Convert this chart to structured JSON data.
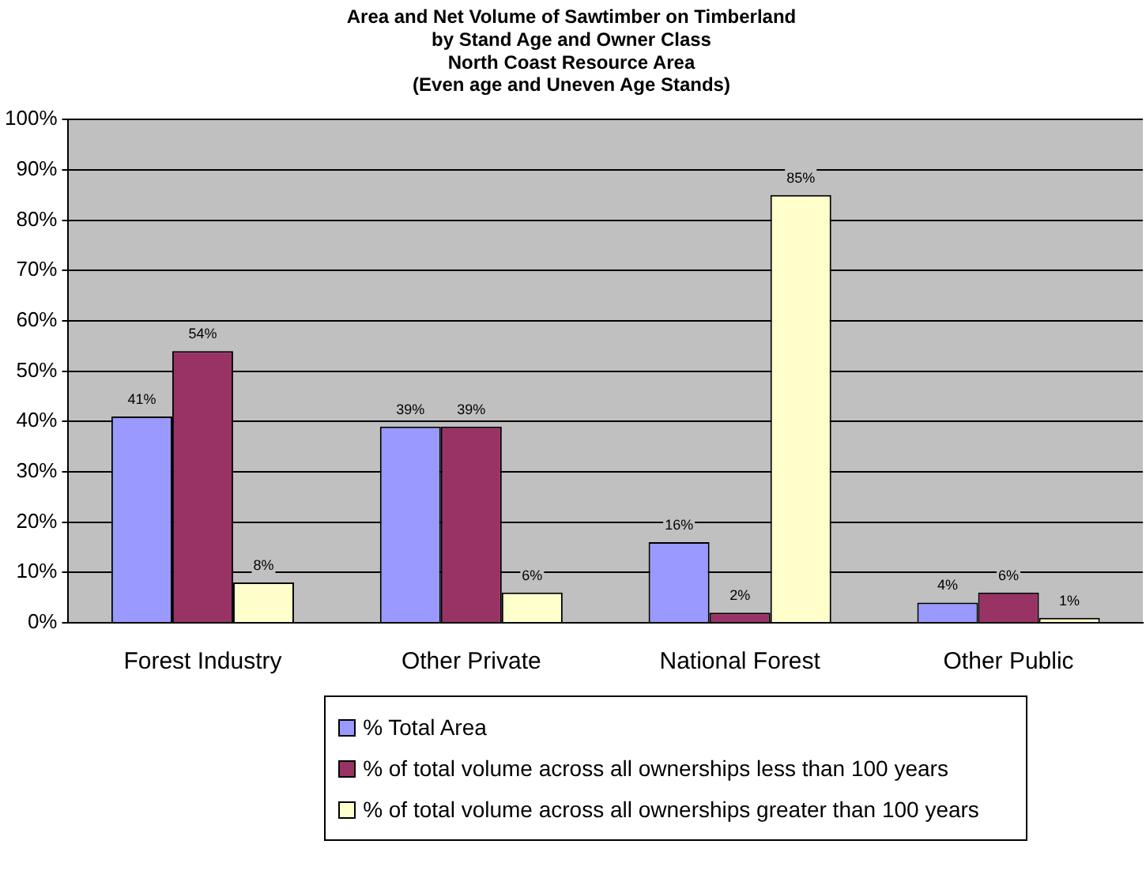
{
  "chart_data": {
    "type": "bar",
    "title": "Area and Net Volume of Sawtimber on Timberland\nby Stand Age and Owner Class\nNorth Coast Resource Area\n(Even age and Uneven Age Stands)",
    "categories": [
      "Forest Industry",
      "Other Private",
      "National Forest",
      "Other Public"
    ],
    "series": [
      {
        "name": "% Total Area",
        "color": "#9999ff",
        "values": [
          41,
          39,
          16,
          4
        ],
        "value_labels": [
          "41%",
          "39%",
          "16%",
          "4%"
        ]
      },
      {
        "name": "% of total volume across all ownerships less than 100 years",
        "color": "#993366",
        "values": [
          54,
          39,
          2,
          6
        ],
        "value_labels": [
          "54%",
          "39%",
          "2%",
          "6%"
        ]
      },
      {
        "name": "% of total volume across all ownerships greater than 100 years",
        "color": "#ffffcc",
        "values": [
          8,
          6,
          85,
          1
        ],
        "value_labels": [
          "8%",
          "6%",
          "85%",
          "1%"
        ]
      }
    ],
    "ylim": [
      0,
      100
    ],
    "yticks": [
      {
        "value": 0,
        "label": "0%"
      },
      {
        "value": 10,
        "label": "10%"
      },
      {
        "value": 20,
        "label": "20%"
      },
      {
        "value": 30,
        "label": "30%"
      },
      {
        "value": 40,
        "label": "40%"
      },
      {
        "value": 50,
        "label": "50%"
      },
      {
        "value": 60,
        "label": "60%"
      },
      {
        "value": 70,
        "label": "70%"
      },
      {
        "value": 80,
        "label": "80%"
      },
      {
        "value": 90,
        "label": "90%"
      },
      {
        "value": 100,
        "label": "100%"
      }
    ],
    "grid": "y",
    "legend": "bottom"
  }
}
